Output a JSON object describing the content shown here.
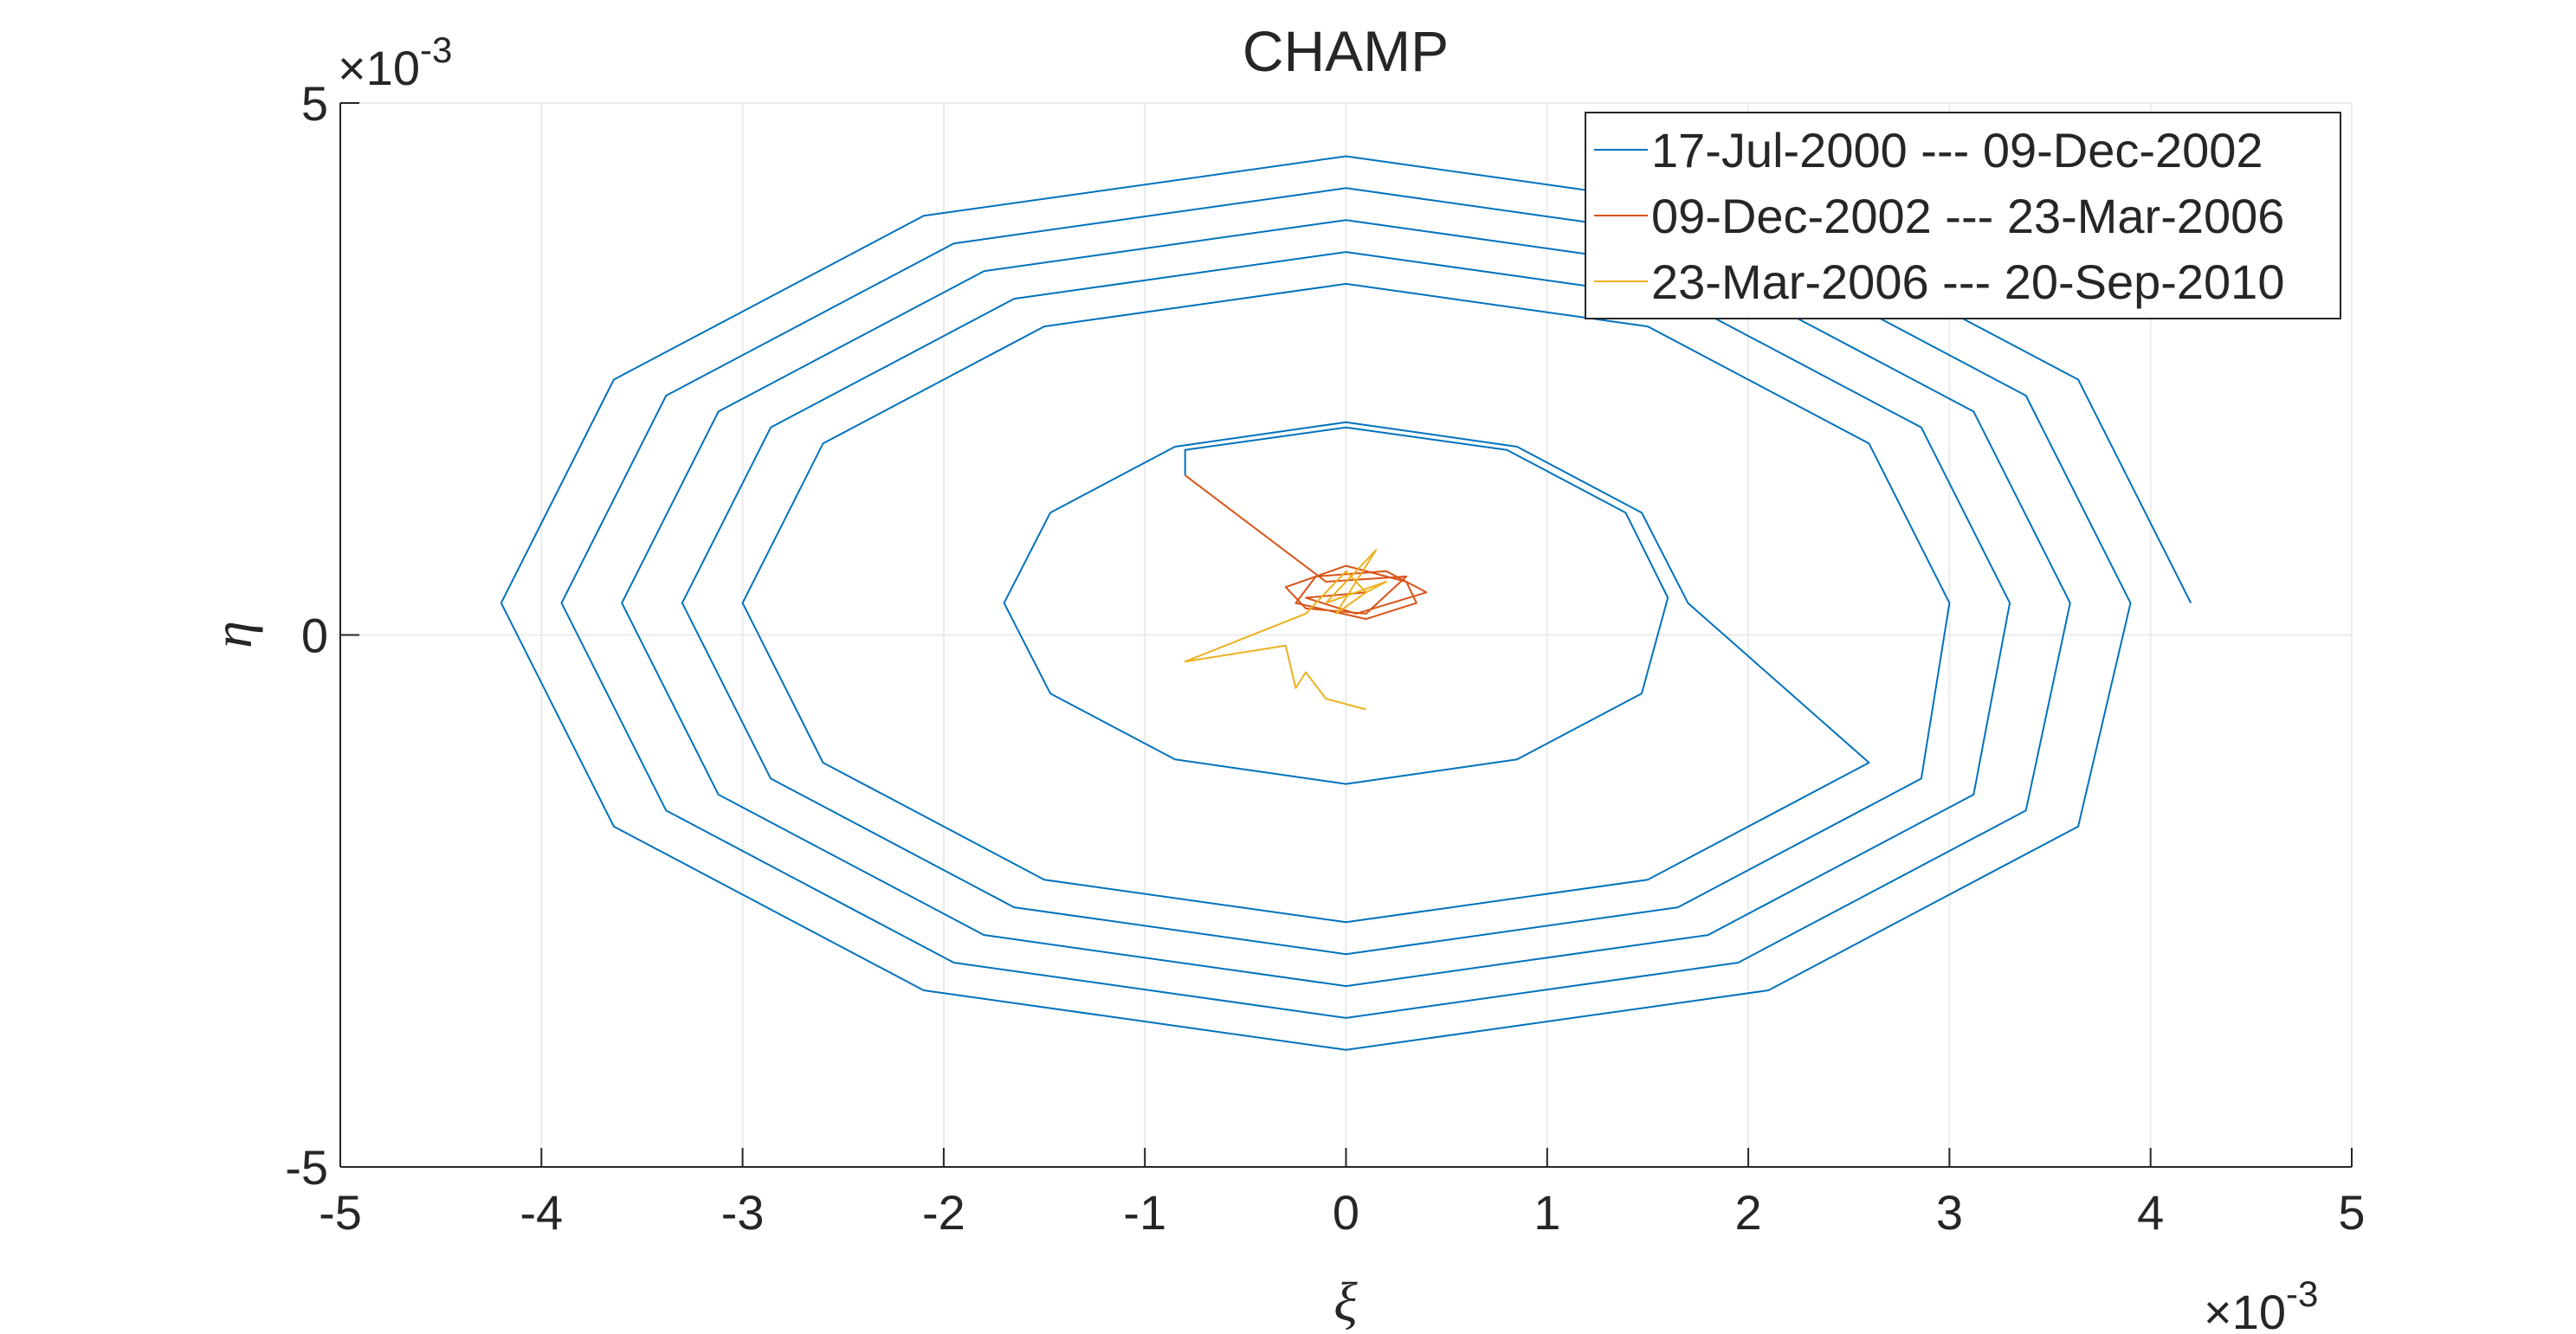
{
  "chart_data": {
    "type": "line",
    "title": "CHAMP",
    "x_label": "ξ",
    "y_label": "η",
    "x_exponent": {
      "base": "×10",
      "power": "-3"
    },
    "y_exponent": {
      "base": "×10",
      "power": "-3"
    },
    "xlim": [
      -5,
      5
    ],
    "ylim": [
      -5,
      5
    ],
    "xticks": [
      -5,
      -4,
      -3,
      -2,
      -1,
      0,
      1,
      2,
      3,
      4,
      5
    ],
    "yticks": [
      -5,
      0,
      5
    ],
    "grid": true,
    "legend": "northeast",
    "series": [
      {
        "name": "17-Jul-2000 --- 09-Dec-2002",
        "color": "#0072BD",
        "x": [
          4.2,
          3.64,
          2.1,
          0,
          -2.1,
          -3.64,
          -4.2,
          -3.64,
          -2.1,
          0,
          2.1,
          3.64,
          3.9,
          3.38,
          1.95,
          0,
          -1.95,
          -3.38,
          -3.9,
          -3.38,
          -1.95,
          0,
          1.95,
          3.38,
          3.6,
          3.12,
          1.8,
          0,
          -1.8,
          -3.12,
          -3.6,
          -3.12,
          -1.8,
          0,
          1.8,
          3.12,
          3.3,
          2.86,
          1.65,
          0,
          -1.65,
          -2.86,
          -3.3,
          -2.86,
          -1.65,
          0,
          1.65,
          2.86,
          3,
          2.6,
          1.5,
          0,
          -1.5,
          -2.6,
          -3,
          -2.6,
          -1.5,
          0,
          1.5,
          2.6,
          1.7,
          1.47,
          0.85,
          0,
          -0.85,
          -1.47,
          -1.7,
          -1.47,
          -0.85,
          0,
          0.85,
          1.47,
          1.6,
          1.39,
          0.8,
          0,
          -0.8,
          -0.8
        ],
        "values": [
          0.3,
          2.4,
          3.94,
          4.5,
          3.94,
          2.4,
          0.3,
          -1.8,
          -3.34,
          -3.9,
          -3.34,
          -1.8,
          0.3,
          2.25,
          3.68,
          4.2,
          3.68,
          2.25,
          0.3,
          -1.65,
          -3.08,
          -3.6,
          -3.08,
          -1.65,
          0.3,
          2.1,
          3.42,
          3.9,
          3.42,
          2.1,
          0.3,
          -1.5,
          -2.82,
          -3.3,
          -2.82,
          -1.5,
          0.3,
          1.95,
          3.16,
          3.6,
          3.16,
          1.95,
          0.3,
          -1.35,
          -2.56,
          -3,
          -2.56,
          -1.35,
          0.3,
          1.8,
          2.9,
          3.3,
          2.9,
          1.8,
          0.3,
          -1.2,
          -2.3,
          -2.7,
          -2.3,
          -1.2,
          0.3,
          1.15,
          1.77,
          2,
          1.77,
          1.15,
          0.3,
          -0.55,
          -1.17,
          -1.4,
          -1.17,
          -0.55,
          0.35,
          1.15,
          1.74,
          1.95,
          1.74,
          1.5
        ]
      },
      {
        "name": "09-Dec-2002 --- 23-Mar-2006",
        "color": "#D95319",
        "x": [
          -0.8,
          -0.1,
          0.3,
          0.1,
          -0.2,
          -0.3,
          0,
          0.3,
          0.35,
          0.1,
          -0.25,
          -0.15,
          0.2,
          0.4,
          0.05,
          -0.2,
          0.1
        ],
        "values": [
          1.5,
          0.5,
          0.55,
          0.2,
          0.25,
          0.45,
          0.65,
          0.5,
          0.3,
          0.15,
          0.3,
          0.55,
          0.6,
          0.4,
          0.2,
          0.35,
          0.4
        ]
      },
      {
        "name": "23-Mar-2006 --- 20-Sep-2010",
        "color": "#EDB120",
        "x": [
          0.1,
          0.2,
          -0.1,
          0.15,
          -0.05,
          0.1,
          0,
          -0.2,
          -0.8,
          -0.3,
          -0.25,
          -0.2,
          -0.1,
          0.1
        ],
        "values": [
          0.4,
          0.5,
          0.3,
          0.8,
          0.2,
          0.4,
          0.6,
          0.2,
          -0.25,
          -0.1,
          -0.5,
          -0.35,
          -0.6,
          -0.7
        ]
      }
    ]
  }
}
